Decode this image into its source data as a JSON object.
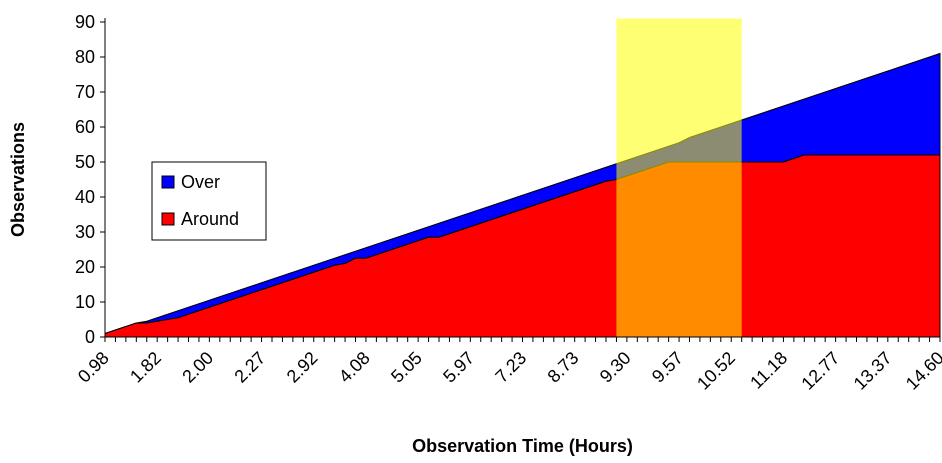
{
  "chart_data": {
    "type": "area",
    "stacked": true,
    "xlabel": "Observation Time (Hours)",
    "ylabel": "Observations",
    "ylim": [
      0,
      90
    ],
    "yticks": [
      0,
      10,
      20,
      30,
      40,
      50,
      60,
      70,
      80,
      90
    ],
    "grid": false,
    "legend_position": "left-middle",
    "categories_shown": [
      "0.98",
      "1.82",
      "2.00",
      "2.27",
      "2.92",
      "4.08",
      "5.05",
      "5.97",
      "7.23",
      "8.73",
      "9.30",
      "9.57",
      "10.52",
      "11.18",
      "12.77",
      "13.37",
      "14.60"
    ],
    "points_count": 81,
    "series": [
      {
        "name": "Around",
        "color": "#ff0000",
        "values": [
          1,
          2,
          3,
          4,
          4,
          4.5,
          5,
          5.5,
          6.5,
          7.5,
          8.5,
          9.5,
          10.5,
          11.5,
          12.5,
          13.5,
          14.5,
          15.5,
          16.5,
          17.5,
          18.5,
          19.5,
          20.5,
          21,
          22.5,
          22.5,
          23.5,
          24.5,
          25.5,
          26.5,
          27.5,
          28.5,
          28.5,
          29.5,
          30.5,
          31.5,
          32.5,
          33.5,
          34.5,
          35.5,
          36.5,
          37.5,
          38.5,
          39.5,
          40.5,
          41.5,
          42.5,
          43.5,
          44.5,
          45,
          46,
          47,
          48,
          49,
          50,
          50,
          50,
          50,
          50,
          50,
          50,
          50,
          50,
          50,
          50,
          50,
          51,
          52,
          52,
          52,
          52,
          52,
          52,
          52,
          52,
          52,
          52,
          52,
          52,
          52,
          52
        ]
      },
      {
        "name": "Over",
        "color": "#0000ff",
        "values": [
          0,
          0,
          0,
          0,
          0.5,
          1,
          1.5,
          2,
          2,
          2,
          2,
          2,
          2,
          2,
          2,
          2,
          2,
          2,
          2,
          2,
          2,
          2,
          2,
          2.5,
          2,
          3,
          3,
          3,
          3,
          3,
          3,
          3,
          4,
          4,
          4,
          4,
          4,
          4,
          4,
          4,
          4,
          4,
          4,
          4,
          4,
          4,
          4,
          4,
          4,
          4.5,
          4.5,
          4.5,
          4.5,
          4.5,
          4.5,
          5.5,
          7,
          8,
          9,
          10,
          11,
          12,
          13,
          14,
          15,
          16,
          16,
          16,
          17,
          18,
          19,
          20,
          21,
          22,
          23,
          24,
          25,
          26,
          27,
          28,
          29
        ]
      }
    ],
    "highlight": {
      "color": "#ffff00",
      "opacity": 0.55,
      "from_index": 49,
      "to_index": 61,
      "ymax": 91
    }
  }
}
